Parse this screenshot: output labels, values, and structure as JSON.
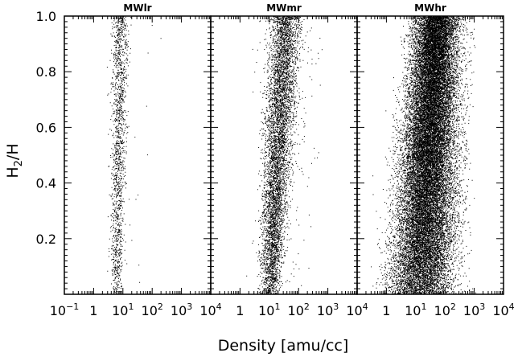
{
  "chart_data": {
    "type": "scatter",
    "xlabel": "Density [amu/cc]",
    "ylabel_main": "H",
    "ylabel_sub": "2",
    "ylabel_tail": "/H",
    "x_scale": "log",
    "xlim": [
      0.1,
      10000
    ],
    "ylim": [
      0,
      1.0
    ],
    "x_ticks": [
      {
        "value": 0.1,
        "base": "10",
        "exp": "−1"
      },
      {
        "value": 1,
        "base": "1",
        "exp": ""
      },
      {
        "value": 10,
        "base": "10",
        "exp": "1"
      },
      {
        "value": 100,
        "base": "10",
        "exp": "2"
      },
      {
        "value": 1000,
        "base": "10",
        "exp": "3"
      },
      {
        "value": 10000,
        "base": "10",
        "exp": "4"
      }
    ],
    "y_ticks": [
      {
        "value": 0.2,
        "label": "0.2"
      },
      {
        "value": 0.4,
        "label": "0.4"
      },
      {
        "value": 0.6,
        "label": "0.6"
      },
      {
        "value": 0.8,
        "label": "0.8"
      },
      {
        "value": 1.0,
        "label": "1.0"
      }
    ],
    "panels": [
      {
        "title": "MWlr",
        "n_points": 1500,
        "ridge_density_low": 6,
        "ridge_density_high": 8,
        "spread_low_dex": 0.1,
        "spread_high_dex": 0.14
      },
      {
        "title": "MWmr",
        "n_points": 6000,
        "ridge_density_low": 10,
        "ridge_density_high": 35,
        "spread_low_dex": 0.18,
        "spread_high_dex": 0.28
      },
      {
        "title": "MWhr",
        "n_points": 26000,
        "ridge_density_low": 14,
        "ridge_density_high": 50,
        "spread_low_dex": 0.55,
        "spread_high_dex": 0.35
      }
    ]
  }
}
